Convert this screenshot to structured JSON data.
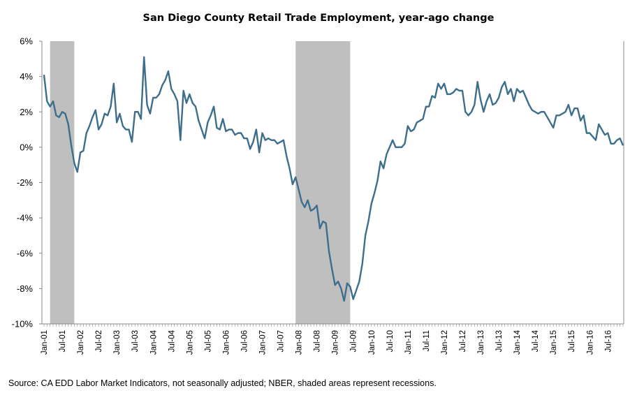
{
  "chart_data": {
    "type": "line",
    "title": "San Diego County Retail Trade Employment, year-ago change",
    "xlabel": "",
    "ylabel": "",
    "x_tick_labels": [
      "Jan-01",
      "Jul-01",
      "Jan-02",
      "Jul-02",
      "Jan-03",
      "Jul-03",
      "Jan-04",
      "Jul-04",
      "Jan-05",
      "Jul-05",
      "Jan-06",
      "Jul-06",
      "Jan-07",
      "Jul-07",
      "Jan-08",
      "Jul-08",
      "Jan-09",
      "Jul-09",
      "Jan-10",
      "Jul-10",
      "Jan-11",
      "Jul-11",
      "Jan-12",
      "Jul-12",
      "Jan-13",
      "Jul-13",
      "Jan-14",
      "Jul-14",
      "Jan-15",
      "Jul-15",
      "Jan-16",
      "Jul-16"
    ],
    "y_tick_labels": [
      "6%",
      "4%",
      "2%",
      "0%",
      "-2%",
      "-4%",
      "-6%",
      "-8%",
      "-10%"
    ],
    "ylim": [
      -10,
      6
    ],
    "x_range": [
      "Jan-01",
      "Dec-16"
    ],
    "grid": false,
    "line_color": "#3d6e8c",
    "recession_color": "#bfbfbf",
    "recessions": [
      {
        "start": "Mar-01",
        "end": "Nov-01"
      },
      {
        "start": "Dec-07",
        "end": "Jun-09"
      }
    ],
    "series": [
      {
        "values": [
          4.1,
          2.6,
          2.3,
          2.6,
          1.8,
          1.7,
          2.0,
          1.9,
          1.3,
          0.1,
          -0.9,
          -1.4,
          -0.3,
          -0.2,
          0.8,
          1.2,
          1.7,
          2.1,
          1.0,
          1.3,
          1.9,
          1.8,
          2.3,
          3.6,
          1.4,
          1.9,
          1.2,
          1.0,
          1.0,
          0.3,
          2.0,
          2.0,
          1.6,
          5.1,
          2.4,
          1.9,
          2.8,
          2.8,
          3.0,
          3.5,
          3.8,
          4.3,
          3.3,
          3.0,
          2.6,
          0.4,
          3.2,
          2.5,
          3.0,
          2.5,
          2.3,
          1.5,
          1.0,
          0.5,
          1.4,
          1.8,
          2.3,
          1.1,
          1.0,
          1.6,
          0.9,
          1.0,
          1.0,
          0.7,
          0.8,
          0.8,
          0.5,
          0.5,
          -0.1,
          0.3,
          1.0,
          -0.3,
          0.8,
          0.4,
          0.5,
          0.4,
          0.4,
          0.2,
          0.3,
          0.4,
          -0.5,
          -1.2,
          -2.1,
          -1.7,
          -2.4,
          -3.1,
          -3.4,
          -3.0,
          -3.6,
          -3.5,
          -3.3,
          -4.6,
          -4.2,
          -4.3,
          -5.9,
          -6.9,
          -7.8,
          -7.6,
          -8.0,
          -8.7,
          -7.7,
          -7.9,
          -8.6,
          -8.1,
          -7.6,
          -6.6,
          -5.0,
          -4.2,
          -3.2,
          -2.6,
          -1.9,
          -0.8,
          -1.2,
          -0.4,
          0.0,
          0.4,
          0.0,
          0.0,
          0.0,
          0.2,
          1.2,
          0.9,
          1.0,
          1.4,
          1.5,
          1.6,
          2.3,
          2.3,
          2.9,
          2.8,
          3.6,
          3.3,
          3.6,
          3.0,
          3.0,
          3.1,
          3.3,
          3.2,
          3.2,
          2.0,
          1.8,
          2.0,
          2.4,
          3.7,
          2.7,
          2.0,
          2.6,
          3.0,
          2.4,
          2.5,
          2.8,
          3.4,
          3.7,
          3.0,
          3.3,
          2.6,
          3.3,
          3.1,
          3.2,
          2.8,
          2.4,
          2.1,
          2.0,
          1.9,
          2.0,
          2.0,
          1.7,
          1.4,
          1.1,
          1.8,
          1.8,
          1.9,
          2.0,
          2.4,
          1.8,
          2.2,
          2.2,
          1.5,
          1.8,
          0.8,
          0.8,
          0.6,
          0.4,
          1.3,
          1.0,
          0.7,
          0.8,
          0.2,
          0.2,
          0.4,
          0.5,
          0.1
        ]
      }
    ]
  },
  "footer": {
    "source": "Source: CA EDD Labor Market Indicators, not seasonally adjusted; NBER, shaded areas represent recessions."
  }
}
